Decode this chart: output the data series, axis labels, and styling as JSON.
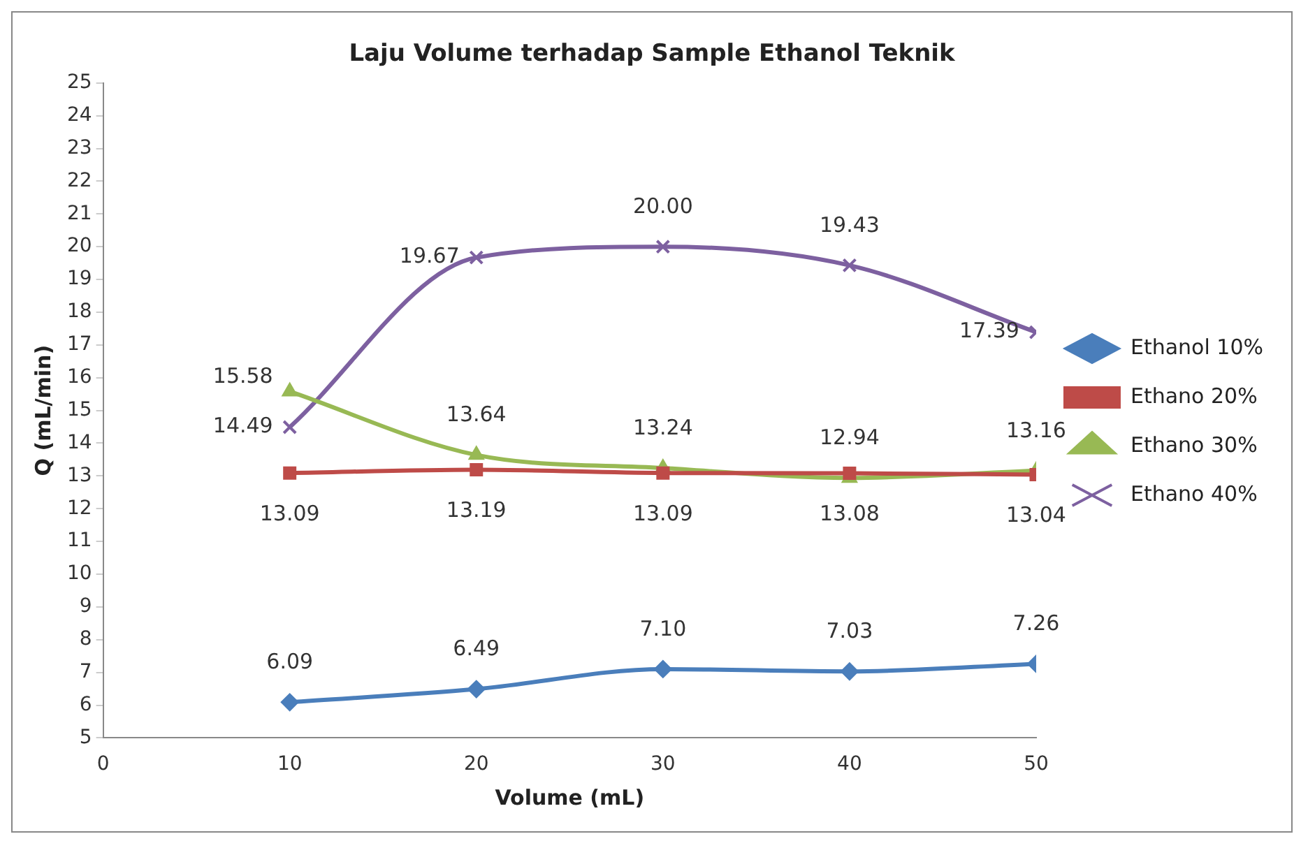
{
  "chart_data": {
    "type": "line",
    "title": "Laju Volume terhadap Sample Ethanol Teknik",
    "xlabel": "Volume (mL)",
    "ylabel": "Q (mL/min)",
    "x": [
      10,
      20,
      30,
      40,
      50
    ],
    "xlim": [
      0,
      50
    ],
    "xticks": [
      0,
      10,
      20,
      30,
      40,
      50
    ],
    "ylim": [
      5,
      25
    ],
    "yticks": [
      5,
      6,
      7,
      8,
      9,
      10,
      11,
      12,
      13,
      14,
      15,
      16,
      17,
      18,
      19,
      20,
      21,
      22,
      23,
      24,
      25
    ],
    "grid": false,
    "legend": "right",
    "series": [
      {
        "name": "Ethanol 10%",
        "color": "#4a7ebb",
        "marker": "diamond",
        "values": [
          6.09,
          6.49,
          7.1,
          7.03,
          7.26
        ],
        "value_labels": [
          "6.09",
          "6.49",
          "7.10",
          "7.03",
          "7.26"
        ]
      },
      {
        "name": "Ethano 20%",
        "color": "#be4b48",
        "marker": "square",
        "values": [
          13.09,
          13.19,
          13.09,
          13.08,
          13.04
        ],
        "value_labels": [
          "13.09",
          "13.19",
          "13.09",
          "13.08",
          "13.04"
        ]
      },
      {
        "name": "Ethano 30%",
        "color": "#98b954",
        "marker": "triangle",
        "values": [
          15.58,
          13.64,
          13.24,
          12.94,
          13.16
        ],
        "value_labels": [
          "15.58",
          "13.64",
          "13.24",
          "12.94",
          "13.16"
        ]
      },
      {
        "name": "Ethano 40%",
        "color": "#7d60a0",
        "marker": "cross",
        "values": [
          14.49,
          19.67,
          20.0,
          19.43,
          17.39
        ],
        "value_labels": [
          "14.49",
          "19.67",
          "20.00",
          "19.43",
          "17.39"
        ]
      }
    ]
  }
}
